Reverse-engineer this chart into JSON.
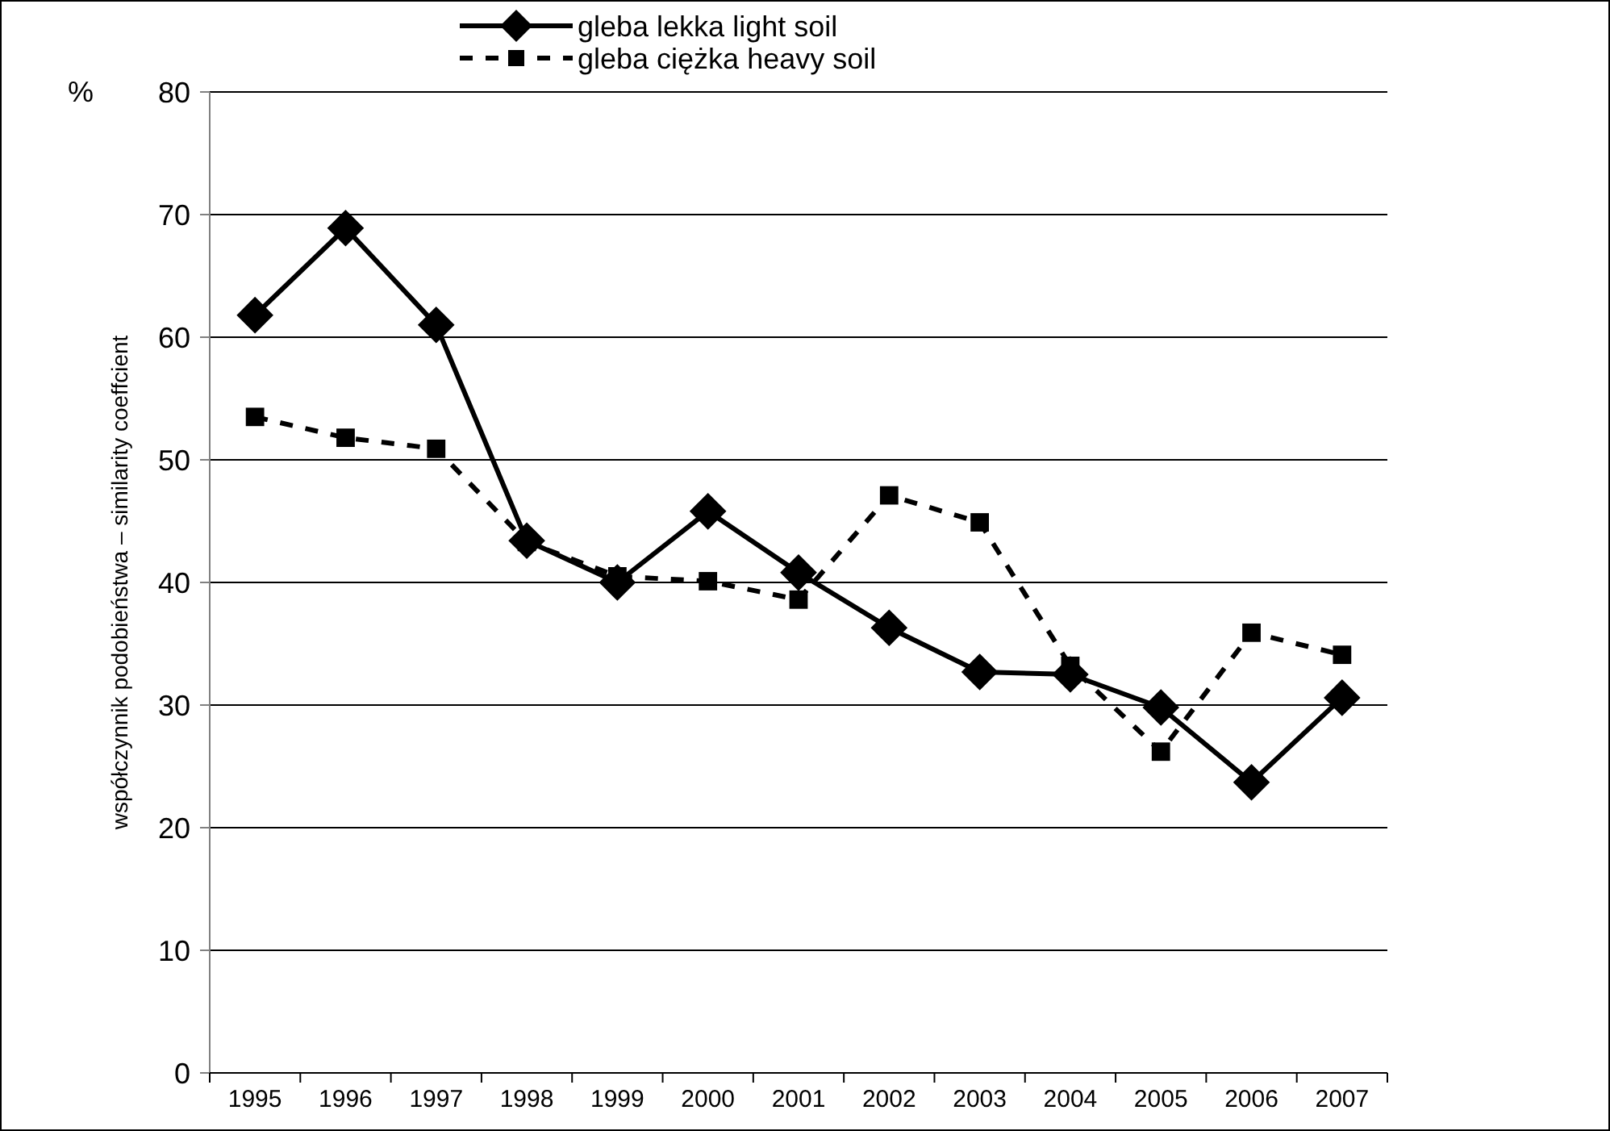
{
  "chart_data": {
    "type": "line",
    "ylabel": "współczynnik podobieństwa – similarity coeffcient",
    "annotations": [
      "%"
    ],
    "categories": [
      "1995",
      "1996",
      "1997",
      "1998",
      "1999",
      "2000",
      "2001",
      "2002",
      "2003",
      "2004",
      "2005",
      "2006",
      "2007"
    ],
    "series": [
      {
        "name": "gleba lekka light soil",
        "color": "#000000",
        "marker": "diamond",
        "line_style": "solid",
        "values": [
          61.8,
          68.9,
          61,
          43.4,
          40,
          45.8,
          40.8,
          36.3,
          32.7,
          32.5,
          29.8,
          23.7,
          30.6
        ]
      },
      {
        "name": "gleba ciężka heavy soil",
        "color": "#000000",
        "marker": "square",
        "line_style": "dashed",
        "values": [
          53.5,
          51.8,
          50.9,
          43.3,
          40.5,
          40.1,
          38.6,
          47.1,
          44.9,
          33.2,
          26.2,
          35.9,
          34.1
        ]
      }
    ],
    "ylim": [
      0,
      80
    ],
    "yticks": [
      0,
      10,
      20,
      30,
      40,
      50,
      60,
      70,
      80
    ],
    "grid": "y",
    "legend": "top"
  }
}
